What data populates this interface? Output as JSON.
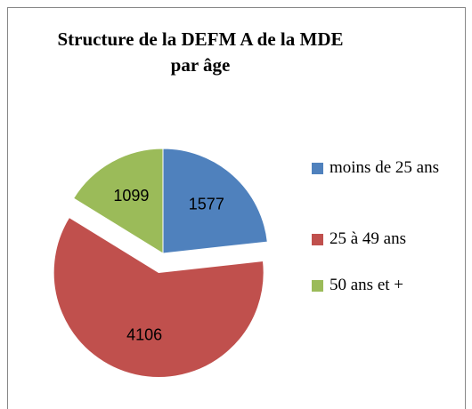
{
  "chart_data": {
    "type": "pie",
    "title": "Structure de la DEFM A de la MDE par âge",
    "categories": [
      "moins de 25 ans",
      "25 à 49 ans",
      "50 ans et +"
    ],
    "values": [
      1577,
      4106,
      1099
    ],
    "colors": [
      "#4f81bd",
      "#c0504d",
      "#9bbb59"
    ],
    "exploded": [
      false,
      true,
      false
    ],
    "legend": "right"
  }
}
